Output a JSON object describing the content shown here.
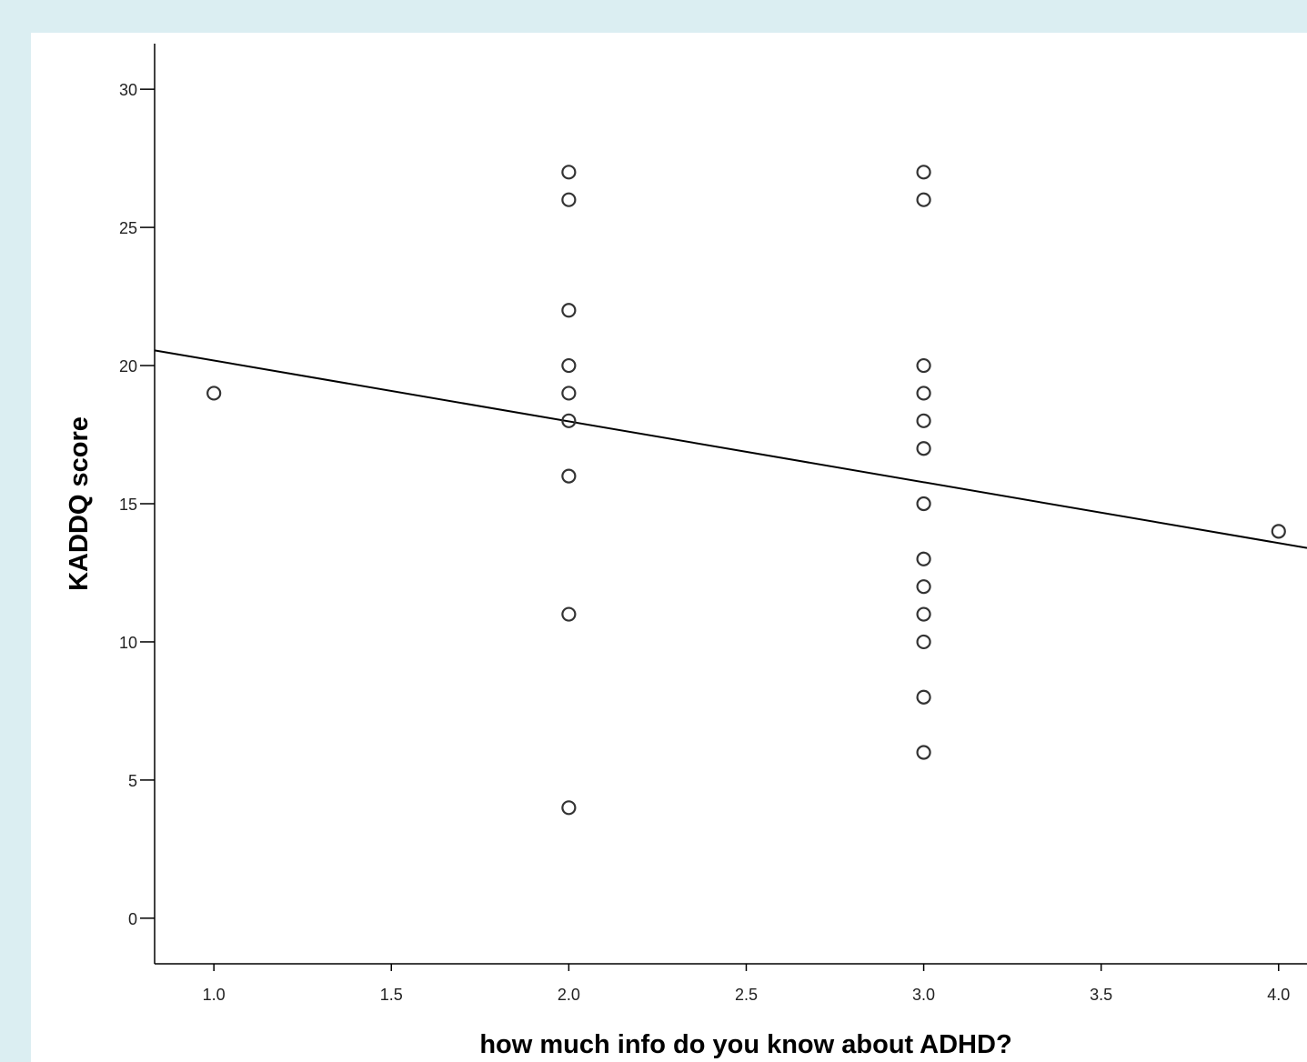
{
  "chart_data": {
    "type": "scatter",
    "title": "",
    "xlabel": "how much info do you know about ADHD?",
    "ylabel": "KADDQ score",
    "xlim": [
      0.833,
      4.08
    ],
    "ylim": [
      -1.65,
      31.65
    ],
    "x_ticks": [
      1.0,
      1.5,
      2.0,
      2.5,
      3.0,
      3.5,
      4.0
    ],
    "x_tick_labels": [
      "1.0",
      "1.5",
      "2.0",
      "2.5",
      "3.0",
      "3.5",
      "4.0"
    ],
    "y_ticks": [
      0,
      5,
      10,
      15,
      20,
      25,
      30
    ],
    "y_tick_labels": [
      "0",
      "5",
      "10",
      "15",
      "20",
      "25",
      "30"
    ],
    "grid": false,
    "legend": "none",
    "series": [
      {
        "points": [
          {
            "x": 1,
            "y": 19
          },
          {
            "x": 2,
            "y": 27
          },
          {
            "x": 2,
            "y": 26
          },
          {
            "x": 2,
            "y": 22
          },
          {
            "x": 2,
            "y": 20
          },
          {
            "x": 2,
            "y": 19
          },
          {
            "x": 2,
            "y": 18
          },
          {
            "x": 2,
            "y": 16
          },
          {
            "x": 2,
            "y": 11
          },
          {
            "x": 2,
            "y": 4
          },
          {
            "x": 3,
            "y": 27
          },
          {
            "x": 3,
            "y": 26
          },
          {
            "x": 3,
            "y": 20
          },
          {
            "x": 3,
            "y": 19
          },
          {
            "x": 3,
            "y": 18
          },
          {
            "x": 3,
            "y": 17
          },
          {
            "x": 3,
            "y": 15
          },
          {
            "x": 3,
            "y": 13
          },
          {
            "x": 3,
            "y": 12
          },
          {
            "x": 3,
            "y": 11
          },
          {
            "x": 3,
            "y": 10
          },
          {
            "x": 3,
            "y": 8
          },
          {
            "x": 3,
            "y": 6
          },
          {
            "x": 4,
            "y": 14
          }
        ]
      }
    ],
    "fit_line": {
      "type": "linear",
      "points": [
        {
          "x": 0.833,
          "y": 20.55
        },
        {
          "x": 4.08,
          "y": 13.4
        }
      ]
    },
    "colors": {
      "marker_stroke": "#333333",
      "line": "#000000",
      "background": "#dbeef2",
      "panel": "#ffffff"
    }
  }
}
